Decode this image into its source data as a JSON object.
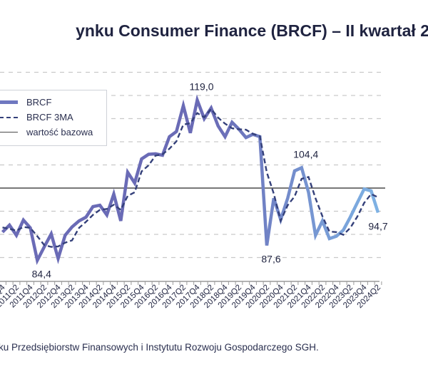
{
  "title": "ynku Consumer Finance (BRCF) – II kwartał 2",
  "footer": "ku Przedsiębiorstw Finansowych i Instytutu Rozwoju Gospodarczego SGH.",
  "legend": {
    "brcf": "BRCF",
    "ma": "BRCF 3MA",
    "base": "wartość bazowa"
  },
  "colors": {
    "line_start": "#6a6bb6",
    "line_end": "#7fb5e6",
    "ma": "#34407a",
    "base": "#4a4a4a",
    "grid": "#c9c9c9",
    "text": "#1f2340"
  },
  "chart_data": {
    "type": "line",
    "title": "",
    "xlabel": "",
    "ylabel": "",
    "ylim": [
      80,
      125
    ],
    "grid": true,
    "legend_position": "top-left",
    "baseline": 100,
    "x": [
      "2010Q4",
      "2011Q1",
      "2011Q2",
      "2011Q3",
      "2011Q4",
      "2012Q1",
      "2012Q2",
      "2012Q3",
      "2012Q4",
      "2013Q1",
      "2013Q2",
      "2013Q3",
      "2013Q4",
      "2014Q1",
      "2014Q2",
      "2014Q3",
      "2014Q4",
      "2015Q1",
      "2015Q2",
      "2015Q3",
      "2015Q4",
      "2016Q1",
      "2016Q2",
      "2016Q3",
      "2016Q4",
      "2017Q1",
      "2017Q2",
      "2017Q3",
      "2017Q4",
      "2018Q1",
      "2018Q2",
      "2018Q3",
      "2018Q4",
      "2019Q1",
      "2019Q2",
      "2019Q3",
      "2019Q4",
      "2020Q1",
      "2020Q2",
      "2020Q3",
      "2020Q4",
      "2021Q1",
      "2021Q2",
      "2021Q3",
      "2021Q4",
      "2022Q1",
      "2022Q2",
      "2022Q3",
      "2022Q4",
      "2023Q1",
      "2023Q2",
      "2023Q3",
      "2023Q4",
      "2024Q1",
      "2024Q2"
    ],
    "tick_labels": [
      "Q4",
      "2011Q2",
      "2011Q4",
      "2012Q2",
      "2012Q4",
      "2013Q2",
      "2013Q4",
      "2014Q2",
      "2014Q4",
      "2015Q2",
      "2015Q4",
      "2016Q2",
      "2016Q4",
      "2017Q2",
      "2017Q4",
      "2018Q2",
      "2018Q4",
      "2019Q2",
      "2019Q4",
      "2020Q2",
      "2020Q4",
      "2021Q2",
      "2021Q4",
      "2022Q2",
      "2022Q4",
      "2023Q2",
      "2023Q4",
      "2024Q2"
    ],
    "series": [
      {
        "name": "BRCF",
        "values": [
          90.5,
          92.0,
          89.8,
          93.1,
          91.4,
          84.4,
          87.3,
          90.1,
          84.8,
          89.8,
          91.6,
          92.9,
          93.7,
          96.0,
          96.3,
          94.2,
          98.7,
          92.9,
          103.4,
          101.1,
          106.3,
          107.3,
          107.4,
          107.1,
          111.1,
          112.2,
          117.8,
          111.9,
          119.0,
          115.0,
          117.3,
          113.4,
          111.1,
          114.2,
          112.7,
          110.9,
          111.6,
          111.1,
          87.6,
          97.8,
          93.2,
          97.8,
          103.7,
          104.4,
          99.1,
          89.8,
          92.9,
          89.1,
          89.6,
          90.9,
          93.7,
          96.8,
          99.8,
          99.4,
          94.7
        ]
      },
      {
        "name": "BRCF 3MA",
        "values": [
          91.5,
          91.2,
          90.8,
          91.6,
          91.4,
          89.6,
          87.7,
          87.3,
          87.4,
          88.2,
          88.7,
          91.4,
          92.7,
          94.2,
          95.3,
          95.5,
          96.4,
          95.3,
          98.3,
          99.1,
          103.6,
          104.9,
          107.0,
          107.3,
          108.5,
          110.1,
          113.7,
          114.0,
          116.2,
          115.3,
          117.1,
          115.2,
          113.9,
          112.9,
          112.7,
          112.6,
          111.7,
          111.2,
          103.4,
          98.8,
          92.9,
          96.3,
          98.2,
          102.0,
          102.4,
          97.8,
          93.9,
          90.6,
          90.5,
          89.9,
          91.4,
          93.8,
          96.8,
          98.7,
          98.0
        ]
      }
    ],
    "annotations": [
      {
        "text": "119,0",
        "x": "2017Q4",
        "y": 119.0,
        "pos": "above"
      },
      {
        "text": "84,4",
        "x": "2012Q1",
        "y": 84.4,
        "pos": "below"
      },
      {
        "text": "87,6",
        "x": "2020Q2",
        "y": 87.6,
        "pos": "below"
      },
      {
        "text": "104,4",
        "x": "2021Q3",
        "y": 104.4,
        "pos": "above"
      },
      {
        "text": "94,7",
        "x": "2024Q2",
        "y": 94.7,
        "pos": "below"
      }
    ]
  }
}
